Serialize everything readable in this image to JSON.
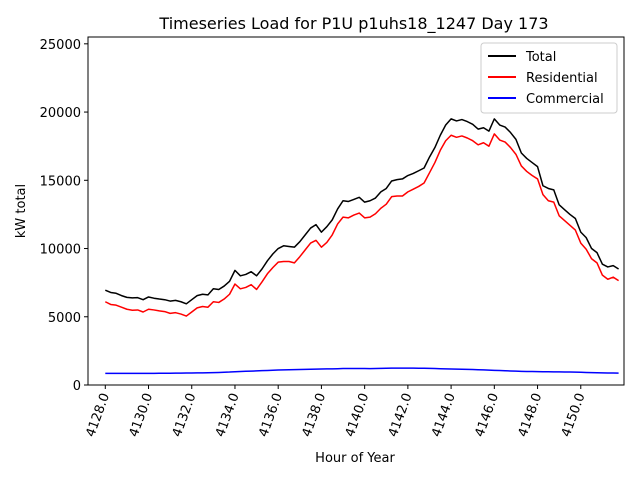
{
  "chart_data": {
    "type": "line",
    "title": "Timeseries Load for P1U p1uhs18_1247  Day 173",
    "xlabel": "Hour of Year",
    "ylabel": "kW total",
    "xlim": [
      4127.2,
      4152.0
    ],
    "ylim": [
      0,
      25500
    ],
    "xticks": [
      "4128.0",
      "4130.0",
      "4132.0",
      "4134.0",
      "4136.0",
      "4138.0",
      "4140.0",
      "4142.0",
      "4144.0",
      "4146.0",
      "4148.0",
      "4150.0"
    ],
    "yticks": [
      "0",
      "5000",
      "10000",
      "15000",
      "20000",
      "25000"
    ],
    "legend_position": "top-right",
    "x_start": 4128.0,
    "x_step": 0.25,
    "series": [
      {
        "name": "Total",
        "color": "#000000",
        "values": [
          6950,
          6780,
          6720,
          6550,
          6420,
          6380,
          6400,
          6250,
          6450,
          6360,
          6300,
          6250,
          6150,
          6200,
          6100,
          5950,
          6250,
          6550,
          6650,
          6600,
          7050,
          7000,
          7250,
          7600,
          8400,
          8000,
          8100,
          8300,
          8000,
          8500,
          9100,
          9600,
          10000,
          10200,
          10150,
          10100,
          10500,
          11000,
          11500,
          11750,
          11200,
          11600,
          12100,
          12900,
          13500,
          13450,
          13600,
          13750,
          13400,
          13500,
          13700,
          14150,
          14400,
          14950,
          15050,
          15100,
          15350,
          15500,
          15700,
          15900,
          16700,
          17400,
          18300,
          19050,
          19500,
          19350,
          19450,
          19300,
          19100,
          18750,
          18850,
          18600,
          19500,
          19050,
          18900,
          18500,
          18000,
          17000,
          16600,
          16300,
          16000,
          14600,
          14400,
          14300,
          13200,
          12850,
          12500,
          12200,
          11200,
          10800,
          10000,
          9700,
          8850,
          8650,
          8750,
          8500
        ]
      },
      {
        "name": "Residential",
        "color": "#ff0000",
        "values": [
          6100,
          5900,
          5850,
          5700,
          5550,
          5480,
          5500,
          5350,
          5550,
          5500,
          5430,
          5380,
          5250,
          5300,
          5200,
          5050,
          5350,
          5650,
          5750,
          5700,
          6100,
          6050,
          6300,
          6650,
          7400,
          7050,
          7150,
          7350,
          7000,
          7550,
          8150,
          8600,
          9000,
          9050,
          9050,
          8950,
          9400,
          9900,
          10400,
          10600,
          10100,
          10450,
          11000,
          11800,
          12300,
          12250,
          12450,
          12600,
          12250,
          12300,
          12550,
          12950,
          13250,
          13800,
          13850,
          13850,
          14150,
          14350,
          14550,
          14800,
          15550,
          16300,
          17200,
          17900,
          18300,
          18150,
          18250,
          18100,
          17900,
          17600,
          17750,
          17500,
          18400,
          17950,
          17800,
          17400,
          16900,
          16050,
          15650,
          15350,
          15100,
          13950,
          13500,
          13400,
          12400,
          12050,
          11700,
          11350,
          10400,
          9950,
          9250,
          8950,
          8050,
          7750,
          7900,
          7650
        ]
      },
      {
        "name": "Commercial",
        "color": "#0000ff",
        "values": [
          850,
          850,
          850,
          850,
          850,
          850,
          850,
          850,
          855,
          855,
          860,
          860,
          865,
          870,
          870,
          875,
          880,
          885,
          890,
          900,
          910,
          920,
          935,
          950,
          975,
          990,
          1005,
          1020,
          1035,
          1050,
          1065,
          1080,
          1095,
          1105,
          1115,
          1125,
          1135,
          1145,
          1155,
          1165,
          1175,
          1180,
          1185,
          1195,
          1205,
          1210,
          1210,
          1210,
          1205,
          1200,
          1210,
          1220,
          1230,
          1235,
          1240,
          1240,
          1240,
          1235,
          1230,
          1225,
          1215,
          1205,
          1195,
          1185,
          1175,
          1165,
          1155,
          1145,
          1135,
          1120,
          1105,
          1090,
          1075,
          1060,
          1045,
          1030,
          1015,
          1000,
          990,
          985,
          980,
          975,
          970,
          965,
          960,
          955,
          950,
          940,
          930,
          920,
          910,
          900,
          890,
          880,
          875,
          870
        ]
      }
    ]
  }
}
